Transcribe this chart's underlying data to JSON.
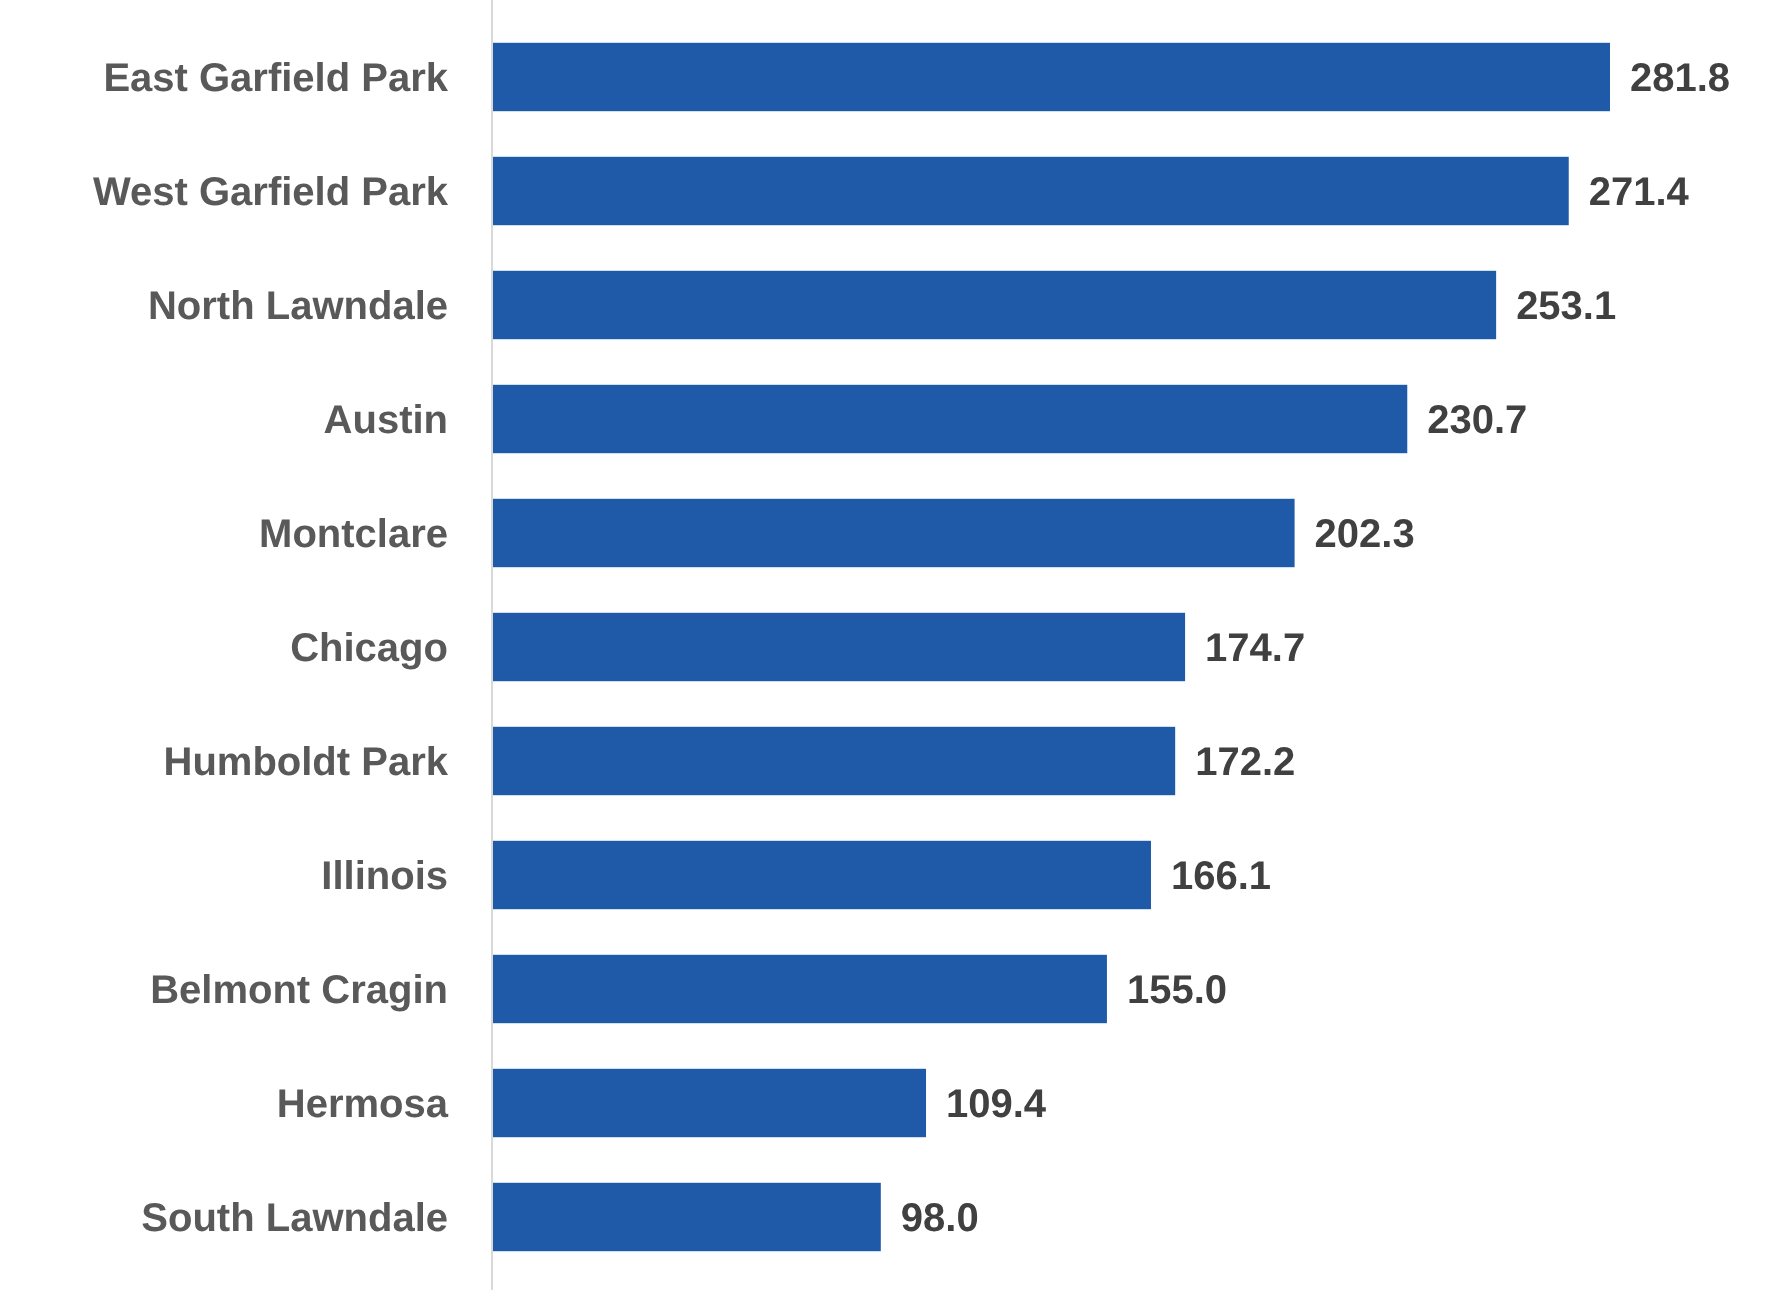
{
  "chart_data": {
    "type": "bar",
    "orientation": "horizontal",
    "color": "#1f5aa8",
    "categories": [
      "East Garfield Park",
      "West Garfield Park",
      "North Lawndale",
      "Austin",
      "Montclare",
      "Chicago",
      "Humboldt Park",
      "Illinois",
      "Belmont Cragin",
      "Hermosa",
      "South Lawndale"
    ],
    "values": [
      281.8,
      271.4,
      253.1,
      230.7,
      202.3,
      174.7,
      172.2,
      166.1,
      155.0,
      109.4,
      98.0
    ],
    "value_labels": [
      "281.8",
      "271.4",
      "253.1",
      "230.7",
      "202.3",
      "174.7",
      "172.2",
      "166.1",
      "155.0",
      "109.4",
      "98.0"
    ]
  }
}
